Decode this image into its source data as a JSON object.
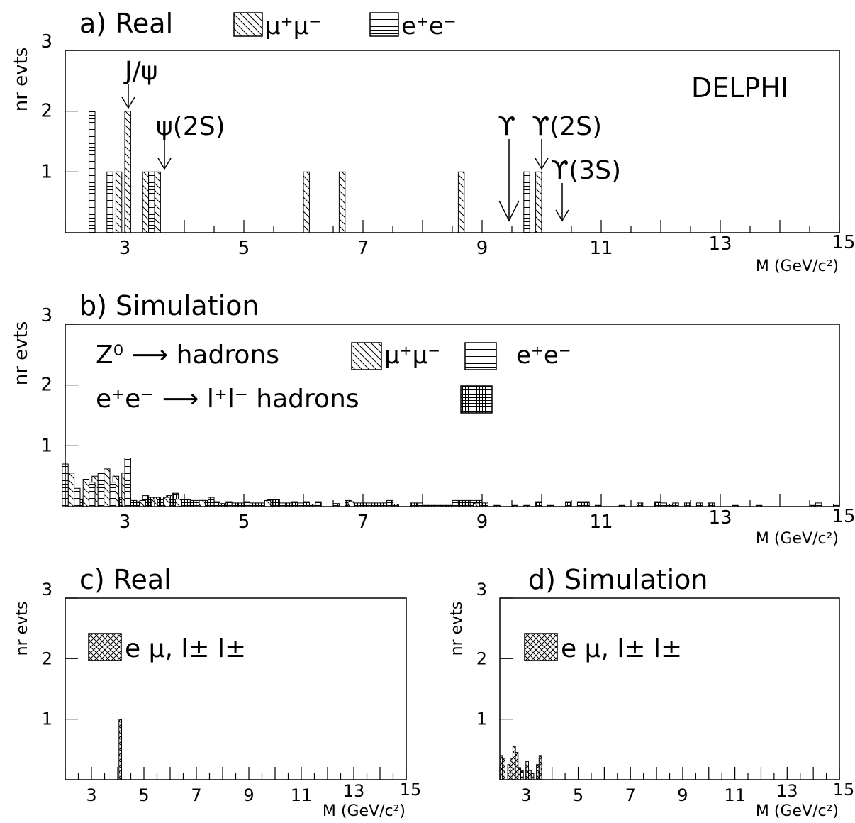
{
  "figure": {
    "panels": [
      {
        "key": "a",
        "letter": "a)",
        "title": "Real"
      },
      {
        "key": "b",
        "letter": "b)",
        "title": "Simulation"
      },
      {
        "key": "c",
        "letter": "c)",
        "title": "Real"
      },
      {
        "key": "d",
        "letter": "d)",
        "title": "Simulation"
      }
    ],
    "experiment_label": "DELPHI",
    "ylabel": "nr evts",
    "xlabel": "M (GeV/c²)",
    "legend_a": {
      "mumu": "μ⁺μ⁻",
      "ee": "e⁺e⁻"
    },
    "legend_b": {
      "z0": "Z⁰",
      "arrow": "⟶",
      "hadrons": "hadrons",
      "mumu": "μ⁺μ⁻",
      "ee": "e⁺e⁻",
      "eeprefix": "e⁺e⁻",
      "llhad": "l⁺l⁻ hadrons"
    },
    "legend_cd": "e μ, l± l±",
    "resonances": [
      {
        "label": "J/ψ",
        "mass": 3.1
      },
      {
        "label": "ψ(2S)",
        "mass": 3.69
      },
      {
        "label": "ϒ",
        "mass": 9.46
      },
      {
        "label": "ϒ(2S)",
        "mass": 10.02
      },
      {
        "label": "ϒ(3S)",
        "mass": 10.36
      }
    ]
  },
  "chart_data": [
    {
      "type": "bar",
      "panel": "a",
      "title": "a) Real",
      "xlabel": "M (GeV/c²)",
      "ylabel": "nr evts",
      "xlim": [
        2,
        15
      ],
      "ylim": [
        0,
        3
      ],
      "xticks": [
        3,
        5,
        7,
        9,
        11,
        13,
        15
      ],
      "yticks": [
        1,
        2,
        3
      ],
      "bar_width": 0.1,
      "series": [
        {
          "name": "μ⁺μ⁻",
          "hatch": "diagonal",
          "x": [
            2.9,
            3.05,
            3.35,
            3.55,
            6.05,
            6.65,
            8.65,
            9.95
          ],
          "values": [
            1,
            2,
            1,
            1,
            1,
            1,
            1,
            1
          ]
        },
        {
          "name": "e⁺e⁻",
          "hatch": "horizontal",
          "x": [
            2.45,
            2.75,
            3.45,
            9.75
          ],
          "values": [
            2,
            1,
            1,
            1
          ]
        }
      ]
    },
    {
      "type": "bar",
      "panel": "b",
      "title": "b) Simulation",
      "xlabel": "M (GeV/c²)",
      "ylabel": "nr evts",
      "xlim": [
        2,
        15
      ],
      "ylim": [
        0,
        3
      ],
      "xticks": [
        3,
        5,
        7,
        9,
        11,
        13,
        15
      ],
      "yticks": [
        1,
        2,
        3
      ],
      "bar_width": 0.1,
      "series": [
        {
          "name": "l⁺l⁻ hadrons",
          "hatch": "grid",
          "x": [
            2.05,
            2.15,
            2.25,
            2.35,
            2.45,
            2.55,
            2.65,
            2.75,
            2.85,
            2.95,
            3.05,
            3.15,
            3.25,
            3.35,
            3.45,
            3.55,
            3.65,
            3.75,
            3.85,
            3.95,
            4.05,
            4.15,
            4.25,
            4.35,
            4.45,
            4.55,
            4.65,
            4.75,
            4.85,
            4.95,
            5.05,
            5.15,
            5.25,
            5.35,
            5.45,
            5.55,
            5.65,
            5.75,
            5.85,
            5.95,
            6.05,
            6.15,
            6.25,
            6.55,
            6.75,
            6.85,
            6.95,
            7.05,
            7.15,
            7.25,
            7.35,
            7.45,
            7.55,
            7.85,
            7.95,
            8.05,
            8.15,
            8.25,
            8.35,
            8.45,
            8.55,
            8.65,
            8.75,
            8.85,
            8.95,
            9.05,
            9.25,
            9.55,
            9.75,
            9.95,
            10.15,
            10.45,
            10.65,
            10.75,
            10.95,
            11.35,
            11.65,
            11.95,
            12.05,
            12.15,
            12.25,
            12.45,
            12.65,
            12.85,
            13.25,
            13.65,
            14.55,
            14.65,
            14.95
          ],
          "values": [
            0.25,
            0.15,
            0.12,
            0.15,
            0.15,
            0.13,
            0.15,
            0.12,
            0.12,
            0.15,
            0.15,
            0.1,
            0.08,
            0.18,
            0.15,
            0.15,
            0.12,
            0.18,
            0.22,
            0.12,
            0.12,
            0.1,
            0.1,
            0.1,
            0.15,
            0.08,
            0.05,
            0.08,
            0.06,
            0.06,
            0.08,
            0.06,
            0.06,
            0.06,
            0.12,
            0.12,
            0.06,
            0.06,
            0.08,
            0.06,
            0.08,
            0.04,
            0.08,
            0.05,
            0.1,
            0.06,
            0.06,
            0.06,
            0.06,
            0.06,
            0.06,
            0.1,
            0.04,
            0.06,
            0.06,
            0.02,
            0.02,
            0.02,
            0.02,
            0.02,
            0.1,
            0.1,
            0.1,
            0.1,
            0.1,
            0.06,
            0.02,
            0.02,
            0.02,
            0.08,
            0.02,
            0.08,
            0.08,
            0.08,
            0.02,
            0.02,
            0.06,
            0.08,
            0.06,
            0.04,
            0.06,
            0.06,
            0.06,
            0.06,
            0.02,
            0.02,
            0.02,
            0.06,
            0.04
          ]
        },
        {
          "name": "μ⁺μ⁻",
          "hatch": "diagonal",
          "x": [
            2.1,
            2.35,
            2.5,
            2.7,
            2.85,
            3.0,
            3.3,
            3.5,
            3.7,
            3.9,
            4.3,
            5.4,
            6.8,
            8.9
          ],
          "values": [
            0.55,
            0.45,
            0.5,
            0.62,
            0.5,
            0.55,
            0.1,
            0.12,
            0.15,
            0.12,
            0.1,
            0.1,
            0.08,
            0.06
          ]
        },
        {
          "name": "e⁺e⁻",
          "hatch": "horizontal",
          "x": [
            2.0,
            2.2,
            2.45,
            2.6,
            2.8,
            3.05
          ],
          "values": [
            0.7,
            0.3,
            0.4,
            0.55,
            0.4,
            0.8
          ]
        }
      ]
    },
    {
      "type": "bar",
      "panel": "c",
      "title": "c) Real",
      "xlabel": "M (GeV/c²)",
      "ylabel": "nr evts",
      "xlim": [
        2,
        15
      ],
      "ylim": [
        0,
        3
      ],
      "xticks": [
        3,
        5,
        7,
        9,
        11,
        13,
        15
      ],
      "yticks": [
        1,
        2,
        3
      ],
      "bar_width": 0.1,
      "series": [
        {
          "name": "e μ, l± l±",
          "hatch": "cross",
          "x": [
            4.1
          ],
          "values": [
            1
          ]
        }
      ]
    },
    {
      "type": "bar",
      "panel": "d",
      "title": "d) Simulation",
      "xlabel": "M (GeV/c²)",
      "ylabel": "nr evts",
      "xlim": [
        2,
        15
      ],
      "ylim": [
        0,
        3
      ],
      "xticks": [
        3,
        5,
        7,
        9,
        11,
        13,
        15
      ],
      "yticks": [
        1,
        2,
        3
      ],
      "bar_width": 0.1,
      "series": [
        {
          "name": "e μ, l± l±",
          "hatch": "cross",
          "x": [
            2.05,
            2.15,
            2.35,
            2.45,
            2.55,
            2.65,
            2.75,
            2.85,
            3.05,
            3.15,
            3.25,
            3.45,
            3.55
          ],
          "values": [
            0.4,
            0.35,
            0.25,
            0.35,
            0.55,
            0.45,
            0.2,
            0.15,
            0.3,
            0.15,
            0.1,
            0.25,
            0.4
          ]
        }
      ]
    }
  ]
}
